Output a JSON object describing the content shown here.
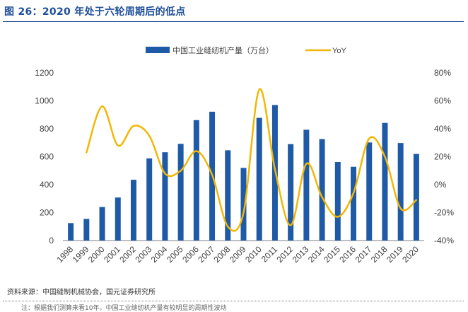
{
  "figure": {
    "title": "图 26：2020 年处于六轮周期后的低点",
    "source": "资料来源：中国缝制机械协会，国元证券研究所",
    "note": "注：根据我们测算来看10年，中国工业缝纫机产量有较明显的周期性波动"
  },
  "colors": {
    "bar": "#1f5aa6",
    "line": "#f2b705",
    "title": "#1f4e99",
    "axis": "#7f7f7f"
  },
  "chart_data": {
    "type": "bar",
    "title": "",
    "categories": [
      "1998",
      "1999",
      "2000",
      "2001",
      "2002",
      "2003",
      "2004",
      "2005",
      "2006",
      "2007",
      "2008",
      "2009",
      "2010",
      "2011",
      "2012",
      "2013",
      "2014",
      "2015",
      "2016",
      "2017",
      "2018",
      "2019",
      "2020"
    ],
    "series": [
      {
        "name": "中国工业缝纫机产量（万台）",
        "type": "bar",
        "axis": "left",
        "values": [
          125,
          155,
          240,
          308,
          435,
          588,
          632,
          692,
          862,
          922,
          646,
          520,
          878,
          970,
          690,
          793,
          726,
          562,
          528,
          702,
          842,
          698,
          620
        ]
      },
      {
        "name": "YoY",
        "type": "line",
        "axis": "right",
        "values_pct": [
          null,
          23,
          56,
          28,
          42,
          35,
          8,
          10,
          24,
          7,
          -30,
          -20,
          68,
          11,
          -29,
          15,
          -9,
          -23,
          -6,
          33,
          20,
          -17,
          -11
        ]
      }
    ],
    "ylim_left": [
      0,
      1200
    ],
    "yticks_left": [
      "0",
      "200",
      "400",
      "600",
      "800",
      "1000",
      "1200"
    ],
    "ylim_right": [
      -40,
      80
    ],
    "yticks_right": [
      "-40%",
      "-20%",
      "0%",
      "20%",
      "40%",
      "60%",
      "80%"
    ],
    "legend_position": "top-center",
    "grid": false
  }
}
